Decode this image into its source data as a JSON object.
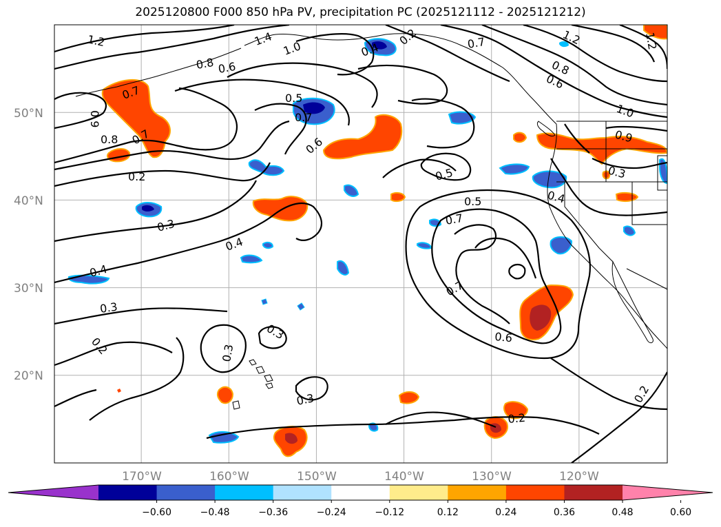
{
  "title": "2025120800 F000 850 hPa PV, precipitation PC (2025121112 - 2025121212)",
  "map": {
    "lat_labels": [
      "50°N",
      "40°N",
      "30°N",
      "20°N"
    ],
    "lon_labels": [
      "170°W",
      "160°W",
      "150°W",
      "140°W",
      "130°W",
      "120°W"
    ],
    "lon_range": [
      -180,
      -110
    ],
    "lat_range": [
      10,
      60
    ],
    "gridlines": true
  },
  "contour_labels": [
    "1.2",
    "1.4",
    "1.0",
    "0.8",
    "0.6",
    "0.4",
    "0.2",
    "0.7",
    "0.9",
    "0.8",
    "0.7",
    "0.5",
    "0.7",
    "0.6",
    "0.2",
    "0.3",
    "0.4",
    "0.4",
    "0.3",
    "0.2",
    "0.3",
    "0.3",
    "0.3",
    "0.5",
    "0.5",
    "0.7",
    "0.7",
    "0.6",
    "0.2",
    "0.2",
    "1.2",
    "0.8",
    "0.6",
    "1.0",
    "0.9",
    "0.3",
    "0.4",
    "1.2",
    "0.7"
  ],
  "colorbar": {
    "ticks": [
      "−0.60",
      "−0.48",
      "−0.36",
      "−0.24",
      "−0.12",
      "0.12",
      "0.24",
      "0.36",
      "0.48",
      "0.60"
    ],
    "colors": [
      "#9932cc",
      "#000099",
      "#3a5fcd",
      "#00bfff",
      "#b0e2ff",
      "#ffffff",
      "#ffec8b",
      "#ffa500",
      "#ff4500",
      "#b22222",
      "#ff82ab"
    ]
  }
}
